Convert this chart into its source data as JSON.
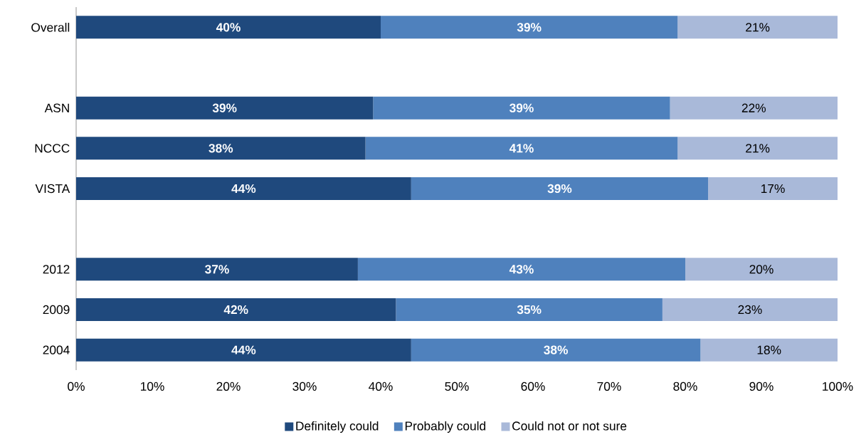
{
  "chart_data": {
    "type": "bar",
    "orientation": "horizontal",
    "stacked": true,
    "categories": [
      "Overall",
      null,
      "ASN",
      "NCCC",
      "VISTA",
      null,
      "2012",
      "2009",
      "2004"
    ],
    "series": [
      {
        "name": "Definitely could",
        "color": "#1f497d",
        "values": [
          40,
          null,
          39,
          38,
          44,
          null,
          37,
          42,
          44
        ],
        "value_labels": [
          "40%",
          null,
          "39%",
          "38%",
          "44%",
          null,
          "37%",
          "42%",
          "44%"
        ]
      },
      {
        "name": "Probably could",
        "color": "#4f81bd",
        "values": [
          39,
          null,
          39,
          41,
          39,
          null,
          43,
          35,
          38
        ],
        "value_labels": [
          "39%",
          null,
          "39%",
          "41%",
          "39%",
          null,
          "43%",
          "35%",
          "38%"
        ]
      },
      {
        "name": "Could not or not sure",
        "color": "#a9b9d9",
        "values": [
          21,
          null,
          22,
          21,
          17,
          null,
          20,
          23,
          18
        ],
        "value_labels": [
          "21%",
          null,
          "22%",
          "21%",
          "17%",
          null,
          "20%",
          "23%",
          "18%"
        ]
      }
    ],
    "xlim": [
      0,
      100
    ],
    "xticks": [
      {
        "value": 0,
        "label": "0%"
      },
      {
        "value": 10,
        "label": "10%"
      },
      {
        "value": 20,
        "label": "20%"
      },
      {
        "value": 30,
        "label": "30%"
      },
      {
        "value": 40,
        "label": "40%"
      },
      {
        "value": 50,
        "label": "50%"
      },
      {
        "value": 60,
        "label": "60%"
      },
      {
        "value": 70,
        "label": "70%"
      },
      {
        "value": 80,
        "label": "80%"
      },
      {
        "value": 90,
        "label": "90%"
      },
      {
        "value": 100,
        "label": "100%"
      }
    ],
    "grid": false,
    "legend": "bottom"
  }
}
